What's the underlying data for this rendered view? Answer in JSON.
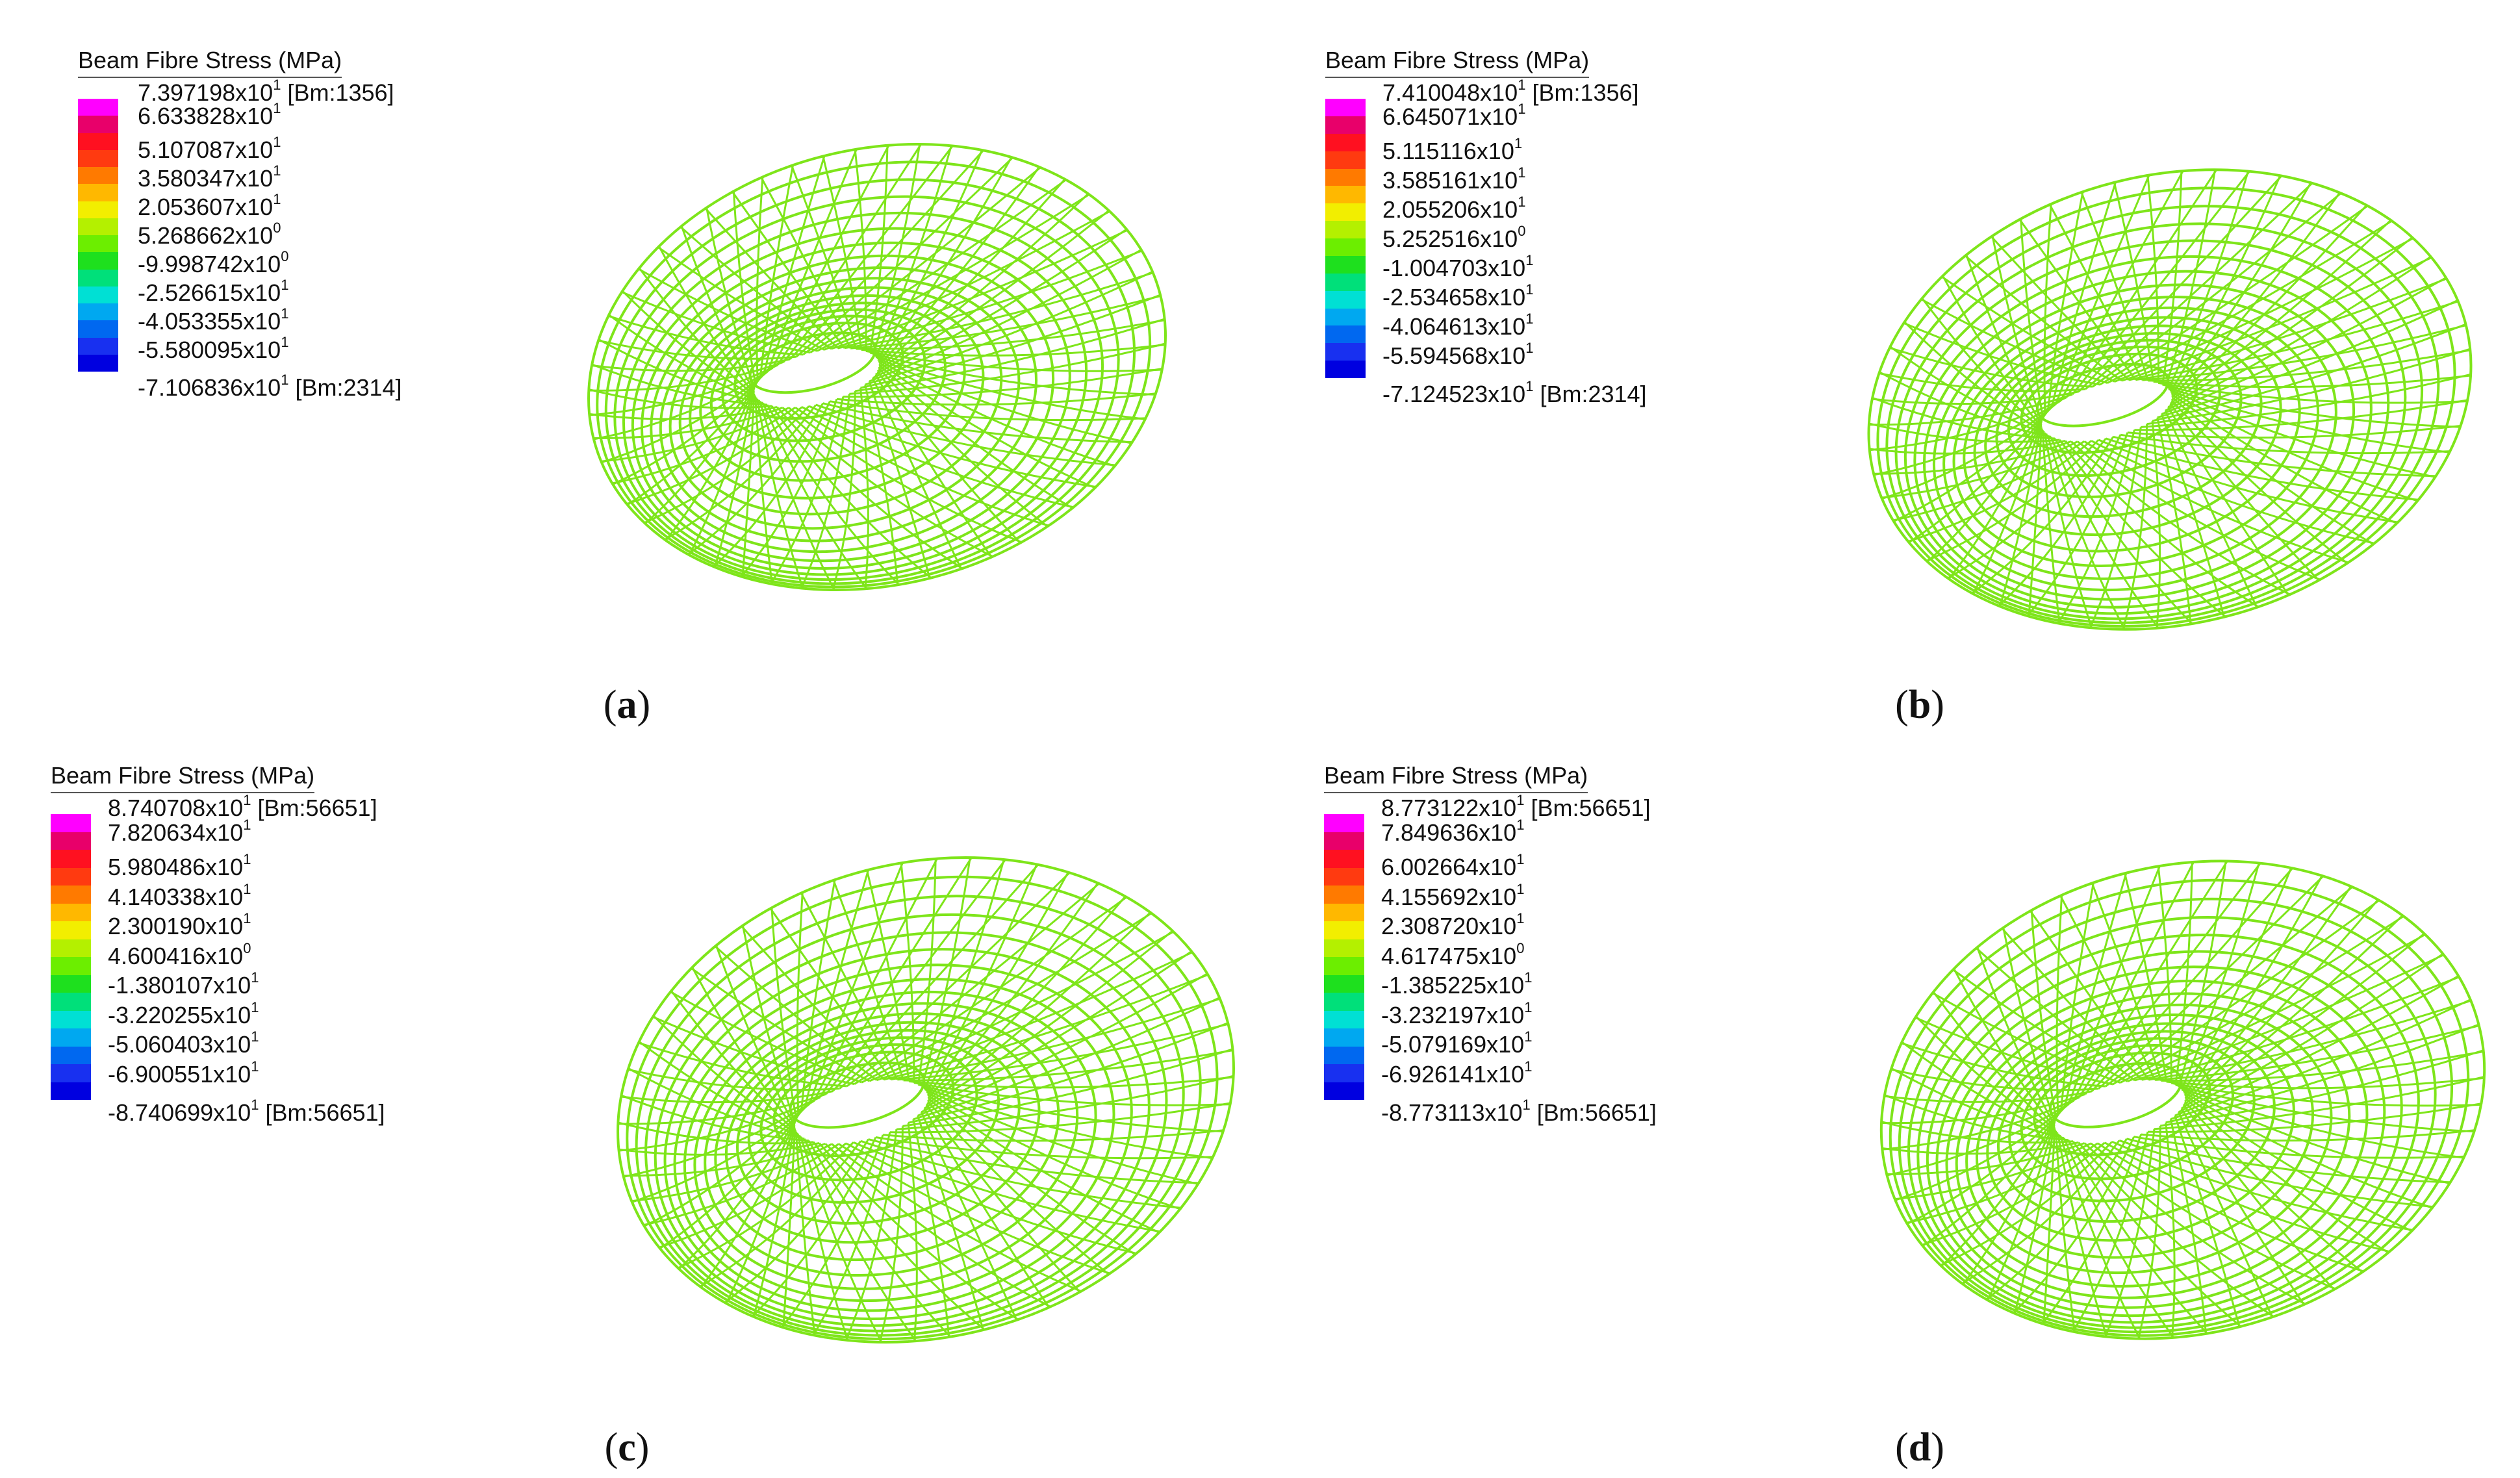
{
  "panels": [
    {
      "id": "a",
      "legend": {
        "title": "Beam Fibre Stress  (MPa)",
        "values": [
          {
            "m": "7.397198",
            "e": "1",
            "tag": "[Bm:1356]"
          },
          {
            "m": "6.633828",
            "e": "1",
            "tag": ""
          },
          {
            "m": "5.107087",
            "e": "1",
            "tag": ""
          },
          {
            "m": "3.580347",
            "e": "1",
            "tag": ""
          },
          {
            "m": "2.053607",
            "e": "1",
            "tag": ""
          },
          {
            "m": "5.268662",
            "e": "0",
            "tag": ""
          },
          {
            "m": "-9.998742",
            "e": "0",
            "tag": ""
          },
          {
            "m": "-2.526615",
            "e": "1",
            "tag": ""
          },
          {
            "m": "-4.053355",
            "e": "1",
            "tag": ""
          },
          {
            "m": "-5.580095",
            "e": "1",
            "tag": ""
          },
          {
            "m": "-7.106836",
            "e": "1",
            "tag": "[Bm:2314]"
          }
        ]
      },
      "caption": "a"
    },
    {
      "id": "b",
      "legend": {
        "title": "Beam Fibre Stress  (MPa)",
        "values": [
          {
            "m": "7.410048",
            "e": "1",
            "tag": "[Bm:1356]"
          },
          {
            "m": "6.645071",
            "e": "1",
            "tag": ""
          },
          {
            "m": "5.115116",
            "e": "1",
            "tag": ""
          },
          {
            "m": "3.585161",
            "e": "1",
            "tag": ""
          },
          {
            "m": "2.055206",
            "e": "1",
            "tag": ""
          },
          {
            "m": "5.252516",
            "e": "0",
            "tag": ""
          },
          {
            "m": "-1.004703",
            "e": "1",
            "tag": ""
          },
          {
            "m": "-2.534658",
            "e": "1",
            "tag": ""
          },
          {
            "m": "-4.064613",
            "e": "1",
            "tag": ""
          },
          {
            "m": "-5.594568",
            "e": "1",
            "tag": ""
          },
          {
            "m": "-7.124523",
            "e": "1",
            "tag": "[Bm:2314]"
          }
        ]
      },
      "caption": "b"
    },
    {
      "id": "c",
      "legend": {
        "title": "Beam Fibre Stress  (MPa)",
        "values": [
          {
            "m": "8.740708",
            "e": "1",
            "tag": "[Bm:56651]"
          },
          {
            "m": "7.820634",
            "e": "1",
            "tag": ""
          },
          {
            "m": "5.980486",
            "e": "1",
            "tag": ""
          },
          {
            "m": "4.140338",
            "e": "1",
            "tag": ""
          },
          {
            "m": "2.300190",
            "e": "1",
            "tag": ""
          },
          {
            "m": "4.600416",
            "e": "0",
            "tag": ""
          },
          {
            "m": "-1.380107",
            "e": "1",
            "tag": ""
          },
          {
            "m": "-3.220255",
            "e": "1",
            "tag": ""
          },
          {
            "m": "-5.060403",
            "e": "1",
            "tag": ""
          },
          {
            "m": "-6.900551",
            "e": "1",
            "tag": ""
          },
          {
            "m": "-8.740699",
            "e": "1",
            "tag": "[Bm:56651]"
          }
        ]
      },
      "caption": "c"
    },
    {
      "id": "d",
      "legend": {
        "title": "Beam Fibre Stress  (MPa)",
        "values": [
          {
            "m": "8.773122",
            "e": "1",
            "tag": "[Bm:56651]"
          },
          {
            "m": "7.849636",
            "e": "1",
            "tag": ""
          },
          {
            "m": "6.002664",
            "e": "1",
            "tag": ""
          },
          {
            "m": "4.155692",
            "e": "1",
            "tag": ""
          },
          {
            "m": "2.308720",
            "e": "1",
            "tag": ""
          },
          {
            "m": "4.617475",
            "e": "0",
            "tag": ""
          },
          {
            "m": "-1.385225",
            "e": "1",
            "tag": ""
          },
          {
            "m": "-3.232197",
            "e": "1",
            "tag": ""
          },
          {
            "m": "-5.079169",
            "e": "1",
            "tag": ""
          },
          {
            "m": "-6.926141",
            "e": "1",
            "tag": ""
          },
          {
            "m": "-8.773113",
            "e": "1",
            "tag": "[Bm:56651]"
          }
        ]
      },
      "caption": "d"
    }
  ],
  "colorbar_colors": [
    "#ff00ff",
    "#e8006a",
    "#ff1020",
    "#ff3a10",
    "#ff7a00",
    "#ffb800",
    "#f2ee00",
    "#b4f000",
    "#6cee00",
    "#1ee01e",
    "#00e07a",
    "#00e0d4",
    "#00a8f0",
    "#0068f0",
    "#1830f0",
    "#0000e0"
  ],
  "mesh_color": "#7ee51a",
  "caption_paren_open": "(",
  "caption_paren_close": ")"
}
